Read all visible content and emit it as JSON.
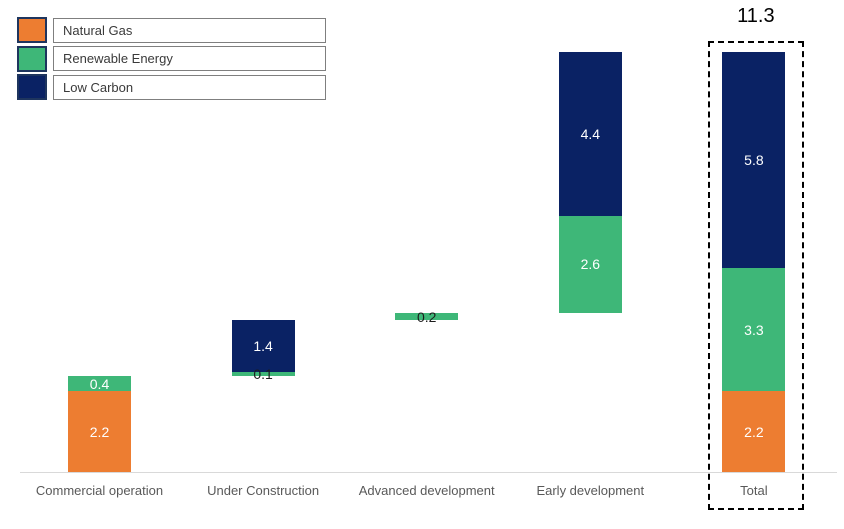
{
  "legend": {
    "items": [
      {
        "label": "Natural Gas",
        "series": "natural_gas",
        "color": "#ED7D31"
      },
      {
        "label": "Renewable Energy",
        "series": "renewable_energy",
        "color": "#3EB778"
      },
      {
        "label": "Low Carbon",
        "series": "low_carbon",
        "color": "#0A2264"
      }
    ]
  },
  "colors": {
    "natural_gas": "#ED7D31",
    "renewable_energy": "#3EB778",
    "low_carbon": "#0A2264",
    "axis_line": "#D9D9D9",
    "category_text": "#595959",
    "value_label_light": "#FFFFFF",
    "value_label_dark": "#1C1C1C",
    "highlight_border": "#000000"
  },
  "chart_data": {
    "type": "bar",
    "subtype": "stacked-waterfall",
    "title": "",
    "xlabel": "",
    "ylabel": "",
    "ylim": [
      0,
      11.3
    ],
    "gridlines": false,
    "legend_position": "top-left",
    "categories": [
      "Commercial operation",
      "Under Construction",
      "Advanced development",
      "Early development",
      "Total"
    ],
    "series": [
      "Natural Gas",
      "Renewable Energy",
      "Low Carbon"
    ],
    "total_label": "11.3",
    "bars": [
      {
        "category": "Commercial operation",
        "base": 0,
        "highlighted": false,
        "segments": [
          {
            "series": "natural_gas",
            "value": 2.2,
            "label": "2.2",
            "label_style": "light"
          },
          {
            "series": "renewable_energy",
            "value": 0.4,
            "label": "0.4",
            "label_style": "light"
          }
        ]
      },
      {
        "category": "Under Construction",
        "base": 2.6,
        "highlighted": false,
        "segments": [
          {
            "series": "renewable_energy",
            "value": 0.1,
            "label": "0.1",
            "label_style": "dark"
          },
          {
            "series": "low_carbon",
            "value": 1.4,
            "label": "1.4",
            "label_style": "light"
          }
        ]
      },
      {
        "category": "Advanced development",
        "base": 4.1,
        "highlighted": false,
        "segments": [
          {
            "series": "renewable_energy",
            "value": 0.2,
            "label": "0.2",
            "label_style": "dark"
          }
        ]
      },
      {
        "category": "Early development",
        "base": 4.3,
        "highlighted": false,
        "segments": [
          {
            "series": "renewable_energy",
            "value": 2.6,
            "label": "2.6",
            "label_style": "light"
          },
          {
            "series": "low_carbon",
            "value": 4.4,
            "label": "4.4",
            "label_style": "light"
          }
        ]
      },
      {
        "category": "Total",
        "base": 0,
        "highlighted": true,
        "segments": [
          {
            "series": "natural_gas",
            "value": 2.2,
            "label": "2.2",
            "label_style": "light"
          },
          {
            "series": "renewable_energy",
            "value": 3.3,
            "label": "3.3",
            "label_style": "light"
          },
          {
            "series": "low_carbon",
            "value": 5.8,
            "label": "5.8",
            "label_style": "light"
          }
        ]
      }
    ]
  }
}
